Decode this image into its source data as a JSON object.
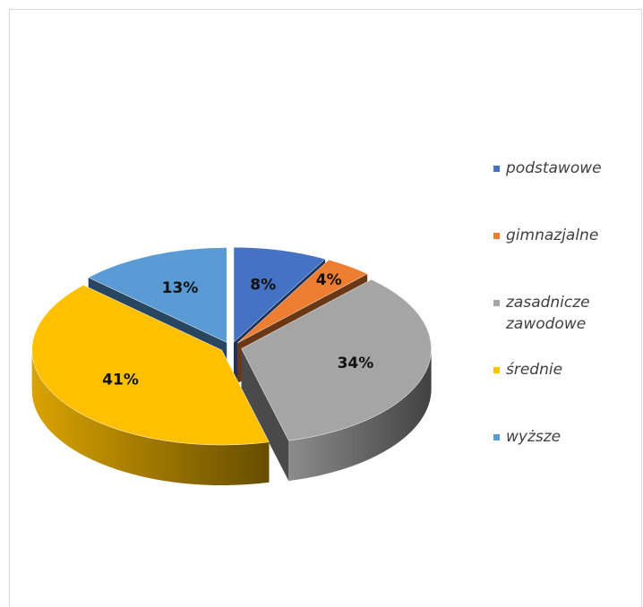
{
  "chart_data": {
    "type": "pie",
    "categories": [
      "podstawowe",
      "gimnazjalne",
      "zasadnicze zawodowe",
      "średnie",
      "wyższe"
    ],
    "values": [
      8,
      4,
      34,
      41,
      13
    ],
    "value_labels": [
      "8%",
      "4%",
      "34%",
      "41%",
      "13%"
    ],
    "colors": [
      "#4472c4",
      "#ed7d31",
      "#a5a5a5",
      "#ffc000",
      "#5b9bd5"
    ],
    "legend": "right"
  }
}
